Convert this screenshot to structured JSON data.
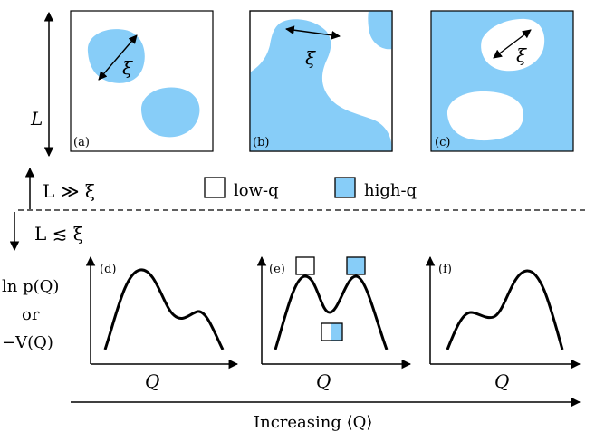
{
  "colors": {
    "high_q": "#87cdf8",
    "line": "#000000",
    "background": "#ffffff"
  },
  "panels_top": [
    {
      "tag": "(a)"
    },
    {
      "tag": "(b)"
    },
    {
      "tag": "(c)"
    }
  ],
  "panels_bottom": [
    {
      "tag": "(d)",
      "xlabel": "Q"
    },
    {
      "tag": "(e)",
      "xlabel": "Q"
    },
    {
      "tag": "(f)",
      "xlabel": "Q"
    }
  ],
  "xi_label": "ξ",
  "l_label": "L",
  "regime_upper": "L ≫ ξ",
  "regime_lower": "L ≲ ξ",
  "legend": {
    "low": "low-q",
    "high": "high-q"
  },
  "ylabel": {
    "line1": "ln p(Q)",
    "line2": "or",
    "line3": "−V(Q)"
  },
  "bottom_axis": "Increasing ⟨Q⟩"
}
